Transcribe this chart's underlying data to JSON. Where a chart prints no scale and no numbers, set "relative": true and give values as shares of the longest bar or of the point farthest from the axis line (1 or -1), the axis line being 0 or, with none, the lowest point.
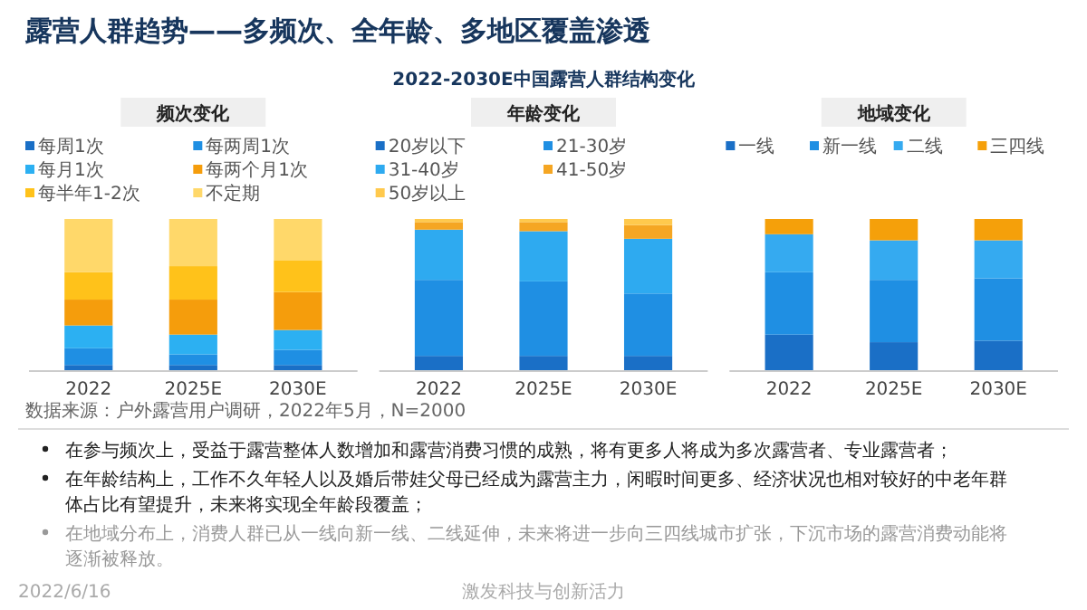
{
  "chart_data": [
    {
      "type": "other",
      "title": "露营人群趋势——多频次、全年龄、多地区覆盖渗透",
      "subtitle": "2022-2030E中国露营人群结构变化",
      "annotations": [
        "在参与频次上，受益于露营整体人数增加和露营消费习惯的成熟，将有更多人将成为多次露营者、专业露营者；",
        "在年龄结构上，工作不久年轻人以及婚后带娃父母已经成为露营主力，闲暇时间更多、经济状况也相对较好的中老年群体占比有望提升，未来将实现全年龄段覆盖；",
        "在地域分布上，消费人群已从一线向新一线、二线延伸，未来将进一步向三四线城市扩张，下沉市场的露营消费动能将逐渐被释放。",
        "2022/6/16",
        "激发科技与创新活力"
      ]
    },
    {
      "type": "bar",
      "title": "频次变化",
      "categories": [
        "2022",
        "2025E",
        "2030E"
      ],
      "stacked": true,
      "relative": true,
      "legend": "top",
      "annotations": [
        "数据来源：户外露营用户调研，2022年5月，N=2000"
      ],
      "series": [
        {
          "name": "每周1次",
          "color": "#1a6fc6",
          "values": [
            0.04,
            0.04,
            0.04
          ]
        },
        {
          "name": "每两周1次",
          "color": "#1f8fe3",
          "values": [
            0.11,
            0.07,
            0.1
          ]
        },
        {
          "name": "每月1次",
          "color": "#2cb0f2",
          "values": [
            0.15,
            0.13,
            0.13
          ]
        },
        {
          "name": "每两个月1次",
          "color": "#f59d0c",
          "values": [
            0.17,
            0.23,
            0.25
          ]
        },
        {
          "name": "每半年1-2次",
          "color": "#ffc21a",
          "values": [
            0.18,
            0.22,
            0.21
          ]
        },
        {
          "name": "不定期",
          "color": "#ffd86a",
          "values": [
            0.35,
            0.31,
            0.27
          ]
        }
      ]
    },
    {
      "type": "bar",
      "title": "年龄变化",
      "categories": [
        "2022",
        "2025E",
        "2030E"
      ],
      "stacked": true,
      "relative": true,
      "legend": "top",
      "series": [
        {
          "name": "20岁以下",
          "color": "#1a6fc6",
          "values": [
            0.1,
            0.1,
            0.1
          ]
        },
        {
          "name": "21-30岁",
          "color": "#1f8fe3",
          "values": [
            0.5,
            0.49,
            0.41
          ]
        },
        {
          "name": "31-40岁",
          "color": "#2eaaf0",
          "values": [
            0.33,
            0.33,
            0.36
          ]
        },
        {
          "name": "41-50岁",
          "color": "#f5a623",
          "values": [
            0.05,
            0.06,
            0.09
          ]
        },
        {
          "name": "50岁以上",
          "color": "#ffc94d",
          "values": [
            0.02,
            0.02,
            0.04
          ]
        }
      ]
    },
    {
      "type": "bar",
      "title": "地域变化",
      "categories": [
        "2022",
        "2025E",
        "2030E"
      ],
      "stacked": true,
      "relative": true,
      "legend": "top",
      "series": [
        {
          "name": "一线",
          "color": "#1a6fc6",
          "values": [
            0.24,
            0.19,
            0.2
          ]
        },
        {
          "name": "新一线",
          "color": "#1f8fe3",
          "values": [
            0.41,
            0.41,
            0.41
          ]
        },
        {
          "name": "二线",
          "color": "#35aaf0",
          "values": [
            0.25,
            0.26,
            0.25
          ]
        },
        {
          "name": "三四线",
          "color": "#f5a00a",
          "values": [
            0.1,
            0.14,
            0.14
          ]
        }
      ]
    }
  ]
}
